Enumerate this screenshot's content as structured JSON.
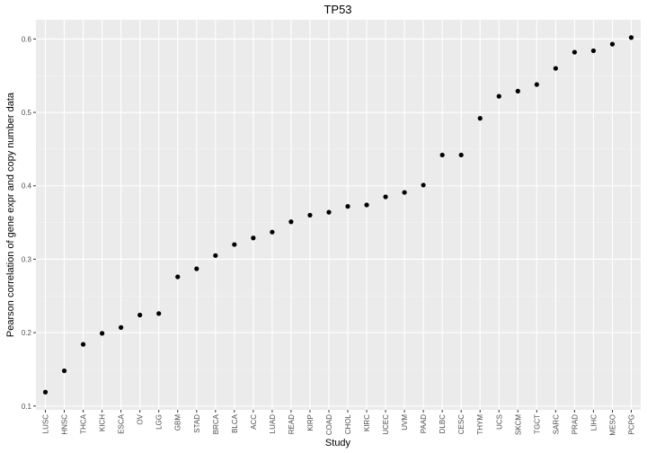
{
  "chart_data": {
    "type": "scatter",
    "title": "TP53",
    "xlabel": "Study",
    "ylabel": "Pearson correlation of gene expr and copy number data",
    "categories": [
      "LUSC",
      "HNSC",
      "THCA",
      "KICH",
      "ESCA",
      "OV",
      "LGG",
      "GBM",
      "STAD",
      "BRCA",
      "BLCA",
      "ACC",
      "LUAD",
      "READ",
      "KIRP",
      "COAD",
      "CHOL",
      "KIRC",
      "UCEC",
      "UVM",
      "PAAD",
      "DLBC",
      "CESC",
      "THYM",
      "UCS",
      "SKCM",
      "TGCT",
      "SARC",
      "PRAD",
      "LIHC",
      "MESO",
      "PCPG"
    ],
    "values": [
      0.119,
      0.148,
      0.184,
      0.199,
      0.207,
      0.224,
      0.226,
      0.276,
      0.287,
      0.305,
      0.32,
      0.329,
      0.337,
      0.351,
      0.36,
      0.364,
      0.372,
      0.374,
      0.385,
      0.391,
      0.401,
      0.442,
      0.442,
      0.492,
      0.522,
      0.529,
      0.538,
      0.56,
      0.582,
      0.584,
      0.593,
      0.602
    ],
    "ylim": [
      0.1,
      0.6
    ],
    "yticks": [
      0.1,
      0.2,
      0.3,
      0.4,
      0.5,
      0.6
    ],
    "ytick_labels": [
      "0.1",
      "0.2",
      "0.3",
      "0.4",
      "0.5",
      "0.6"
    ],
    "grid": true,
    "colors": {
      "panel": "#ebebeb",
      "grid_major": "#ffffff",
      "point": "#000000"
    }
  }
}
